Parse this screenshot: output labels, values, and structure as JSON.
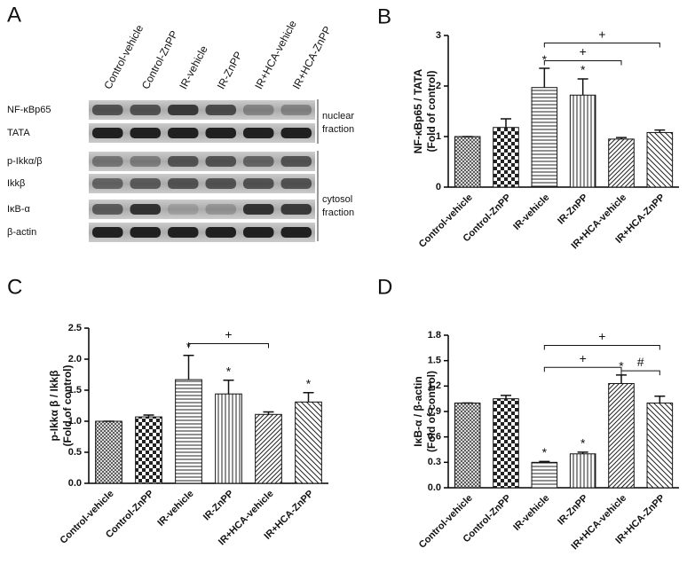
{
  "blot": {
    "panel_label": "A",
    "lanes": [
      "Control-vehicle",
      "Control-ZnPP",
      "IR-vehicle",
      "IR-ZnPP",
      "IR+HCA-vehicle",
      "IR+HCA-ZnPP"
    ],
    "rows": [
      "NF-κBp65",
      "TATA",
      "p-Ikkα/β",
      "Ikkβ",
      "IκB-α",
      "β-actin"
    ],
    "fractions": [
      {
        "line1": "nuclear",
        "line2": "fraction"
      },
      {
        "line1": "cytosol",
        "line2": "fraction"
      }
    ]
  },
  "chart_data": [
    {
      "type": "bar",
      "panel_label": "B",
      "ylabel": "NF-κBp65 / TATA",
      "ylabel2": "(Fold of control)",
      "categories": [
        "Control-vehicle",
        "Control-ZnPP",
        "IR-vehicle",
        "IR-ZnPP",
        "IR+HCA-vehicle",
        "IR+HCA-ZnPP"
      ],
      "values": [
        1.0,
        1.18,
        1.97,
        1.82,
        0.95,
        1.08
      ],
      "errors": [
        0,
        0.17,
        0.38,
        0.32,
        0.03,
        0.05
      ],
      "ylim": [
        0,
        3
      ],
      "yticks": [
        0,
        1,
        2,
        3
      ],
      "stars": [
        {
          "text": "*",
          "index": 2
        },
        {
          "text": "*",
          "index": 3
        }
      ],
      "brackets": [
        {
          "text": "+",
          "from": 2,
          "to": 4,
          "y": 2.5
        },
        {
          "text": "+",
          "from": 2,
          "to": 5,
          "y": 2.85
        }
      ]
    },
    {
      "type": "bar",
      "panel_label": "C",
      "ylabel": "p-Ikkα β / Ikkβ",
      "ylabel2": "(Fold of control)",
      "categories": [
        "Control-vehicle",
        "Control-ZnPP",
        "IR-vehicle",
        "IR-ZnPP",
        "IR+HCA-vehicle",
        "IR+HCA-ZnPP"
      ],
      "values": [
        1.0,
        1.07,
        1.67,
        1.44,
        1.11,
        1.31
      ],
      "errors": [
        0,
        0.03,
        0.39,
        0.22,
        0.04,
        0.15
      ],
      "ylim": [
        0,
        2.5
      ],
      "yticks": [
        {
          "value": 0,
          "label": "0.0"
        },
        0.5,
        {
          "value": 1,
          "label": "1.0"
        },
        1.5,
        {
          "value": 2,
          "label": "2.0"
        },
        2.5
      ],
      "stars": [
        {
          "text": "*",
          "index": 2
        },
        {
          "text": "*",
          "index": 3
        },
        {
          "text": "*",
          "index": 5
        }
      ],
      "brackets": [
        {
          "text": "+",
          "from": 2,
          "to": 4,
          "y": 2.25
        }
      ]
    },
    {
      "type": "bar",
      "panel_label": "D",
      "ylabel": "IκB-α / β-actin",
      "ylabel2": "(Fold of control)",
      "categories": [
        "Control-vehicle",
        "Control-ZnPP",
        "IR-vehicle",
        "IR-ZnPP",
        "IR+HCA-vehicle",
        "IR+HCA-ZnPP"
      ],
      "values": [
        1.0,
        1.05,
        0.3,
        0.4,
        1.23,
        1.0
      ],
      "errors": [
        0,
        0.04,
        0.01,
        0.02,
        0.1,
        0.08
      ],
      "ylim": [
        0,
        1.8
      ],
      "yticks": [
        {
          "value": 0,
          "label": "0.0"
        },
        0.3,
        0.6,
        0.9,
        1.2,
        1.5,
        1.8
      ],
      "stars": [
        {
          "text": "*",
          "index": 2
        },
        {
          "text": "*",
          "index": 3
        },
        {
          "text": "*",
          "index": 4
        }
      ],
      "brackets": [
        {
          "text": "+",
          "from": 2,
          "to": 4,
          "y": 1.42
        },
        {
          "text": "+",
          "from": 2,
          "to": 5,
          "y": 1.68
        },
        {
          "text": "#",
          "from": 4,
          "to": 5,
          "y": 1.38
        }
      ]
    }
  ]
}
